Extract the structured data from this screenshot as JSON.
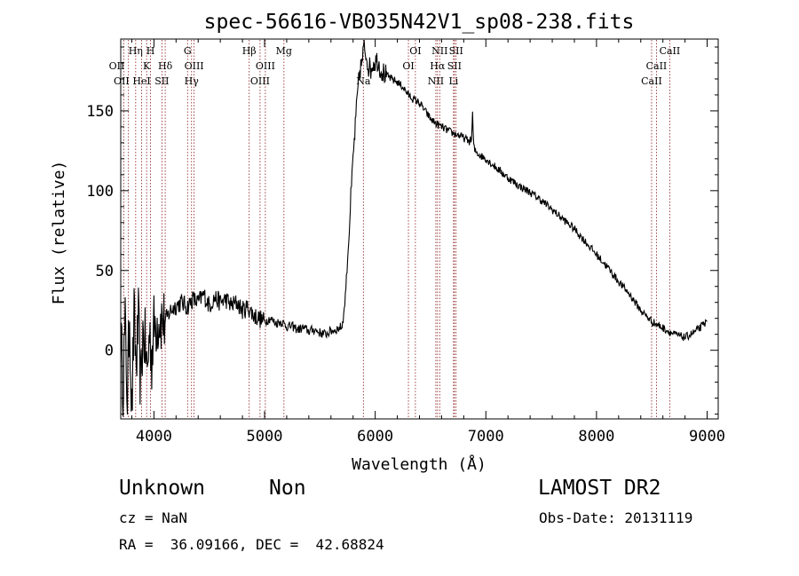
{
  "chart_data": {
    "type": "line",
    "title": "spec-56616-VB035N42V1_sp08-238.fits",
    "xlabel": "Wavelength (Å)",
    "ylabel": "Flux (relative)",
    "xlim": [
      3700,
      9100
    ],
    "ylim": [
      -43,
      195
    ],
    "xticks": [
      4000,
      5000,
      6000,
      7000,
      8000,
      9000
    ],
    "yticks": [
      0,
      50,
      100,
      150
    ],
    "grid": false,
    "line_color": "#000000",
    "marker_color": "#8b1a1a",
    "series": [
      {
        "x": [
          3700,
          3720,
          3740,
          3760,
          3780,
          3800,
          3820,
          3840,
          3860,
          3880,
          3900,
          3920,
          3940,
          3960,
          3980,
          4000,
          4050,
          4100,
          4150,
          4200,
          4250,
          4300,
          4350,
          4400,
          4450,
          4500,
          4550,
          4600,
          4650,
          4700,
          4750,
          4800,
          4850,
          4900,
          4950,
          5000,
          5050,
          5100,
          5150,
          5200,
          5250,
          5300,
          5350,
          5400,
          5450,
          5500,
          5550,
          5600,
          5650,
          5700,
          5720,
          5740,
          5760,
          5780,
          5800,
          5820,
          5840,
          5860,
          5880,
          5900,
          5920,
          5940,
          5960,
          5980,
          6000,
          6020,
          6050,
          6100,
          6150,
          6200,
          6250,
          6300,
          6350,
          6400,
          6450,
          6500,
          6550,
          6600,
          6650,
          6700,
          6750,
          6800,
          6850,
          6870,
          6880,
          6890,
          6900,
          6950,
          7000,
          7100,
          7200,
          7300,
          7400,
          7500,
          7600,
          7700,
          7800,
          7900,
          8000,
          8100,
          8200,
          8300,
          8400,
          8500,
          8550,
          8600,
          8650,
          8700,
          8750,
          8800,
          8850,
          8900,
          8950,
          9000
        ],
        "y": [
          10,
          -20,
          15,
          -30,
          25,
          -40,
          20,
          -10,
          18,
          -25,
          10,
          5,
          -15,
          12,
          -5,
          15,
          20,
          18,
          25,
          28,
          30,
          27,
          32,
          30,
          35,
          28,
          33,
          30,
          32,
          28,
          30,
          25,
          27,
          22,
          20,
          18,
          20,
          17,
          18,
          15,
          15,
          13,
          14,
          12,
          13,
          11,
          10,
          12,
          13,
          15,
          25,
          45,
          70,
          95,
          120,
          140,
          160,
          175,
          180,
          190,
          185,
          178,
          176,
          180,
          181,
          182,
          176,
          172,
          170,
          168,
          165,
          160,
          157,
          155,
          150,
          145,
          142,
          140,
          138,
          136,
          135,
          133,
          131,
          132,
          148,
          128,
          125,
          122,
          120,
          114,
          108,
          103,
          99,
          94,
          88,
          82,
          76,
          68,
          60,
          52,
          43,
          35,
          25,
          18,
          16,
          14,
          12,
          10,
          9,
          8,
          10,
          12,
          15,
          18
        ]
      }
    ],
    "lines": [
      {
        "w": 3727,
        "label": "OII",
        "row": 2,
        "ha": "end"
      },
      {
        "w": 3770,
        "label": "OII",
        "row": 3,
        "ha": "end"
      },
      {
        "w": 3835,
        "label": "Hη",
        "row": 1,
        "ha": "middle"
      },
      {
        "w": 3889,
        "label": "HeI",
        "row": 3,
        "ha": "middle"
      },
      {
        "w": 3934,
        "label": "K",
        "row": 2,
        "ha": "middle"
      },
      {
        "w": 3969,
        "label": "H",
        "row": 1,
        "ha": "middle"
      },
      {
        "w": 4072,
        "label": "SII",
        "row": 3,
        "ha": "middle"
      },
      {
        "w": 4102,
        "label": "Hδ",
        "row": 2,
        "ha": "middle"
      },
      {
        "w": 4304,
        "label": "G",
        "row": 1,
        "ha": "middle"
      },
      {
        "w": 4340,
        "label": "Hγ",
        "row": 3,
        "ha": "middle"
      },
      {
        "w": 4363,
        "label": "OIII",
        "row": 2,
        "ha": "middle"
      },
      {
        "w": 4861,
        "label": "Hβ",
        "row": 1,
        "ha": "middle"
      },
      {
        "w": 4959,
        "label": "OIII",
        "row": 3,
        "ha": "middle"
      },
      {
        "w": 5007,
        "label": "OIII",
        "row": 2,
        "ha": "middle"
      },
      {
        "w": 5175,
        "label": "Mg",
        "row": 1,
        "ha": "middle"
      },
      {
        "w": 5893,
        "label": "Na",
        "row": 3,
        "ha": "middle"
      },
      {
        "w": 6300,
        "label": "OI",
        "row": 2,
        "ha": "middle"
      },
      {
        "w": 6363,
        "label": "OI",
        "row": 1,
        "ha": "middle"
      },
      {
        "w": 6548,
        "label": "NII",
        "row": 3,
        "ha": "middle"
      },
      {
        "w": 6563,
        "label": "Hα",
        "row": 2,
        "ha": "middle"
      },
      {
        "w": 6583,
        "label": "NII",
        "row": 1,
        "ha": "middle"
      },
      {
        "w": 6708,
        "label": "Li",
        "row": 3,
        "ha": "middle"
      },
      {
        "w": 6716,
        "label": "SII",
        "row": 2,
        "ha": "middle"
      },
      {
        "w": 6731,
        "label": "SII",
        "row": 1,
        "ha": "middle"
      },
      {
        "w": 8498,
        "label": "CaII",
        "row": 3,
        "ha": "middle"
      },
      {
        "w": 8542,
        "label": "CaII",
        "row": 2,
        "ha": "middle"
      },
      {
        "w": 8662,
        "label": "CaII",
        "row": 1,
        "ha": "middle"
      }
    ]
  },
  "info": {
    "class": "Unknown",
    "subclass": "Non",
    "survey": "LAMOST DR2",
    "cz": "cz = NaN",
    "obs_date": "Obs-Date: 20131119",
    "coords": "RA =  36.09166, DEC =  42.68824"
  }
}
